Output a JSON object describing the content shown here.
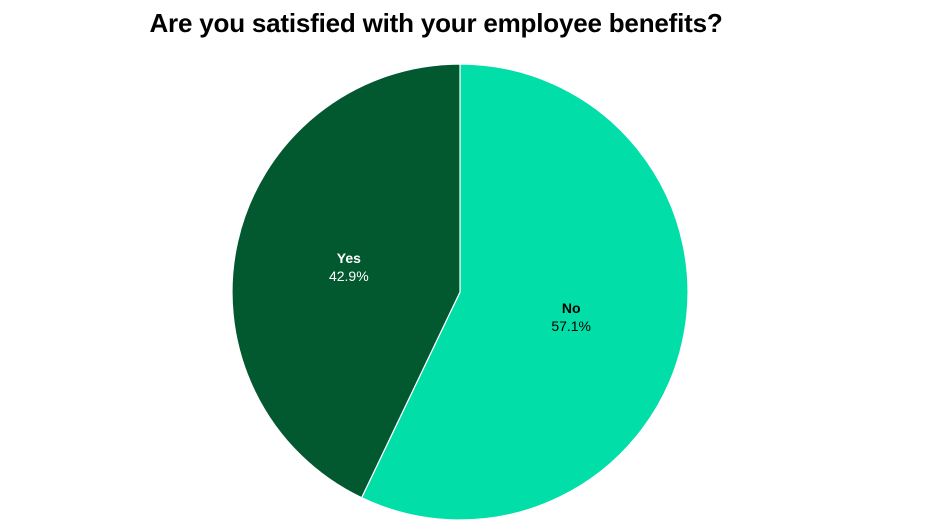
{
  "chart_data": {
    "type": "pie",
    "title": "Are you satisfied with your employee benefits?",
    "slices": [
      {
        "label": "No",
        "value": 57.1,
        "value_label": "57.1%",
        "color": "#02dea8",
        "text_color": "#000000"
      },
      {
        "label": "Yes",
        "value": 42.9,
        "value_label": "42.9%",
        "color": "#02582f",
        "text_color": "#ffffff"
      }
    ],
    "start": "12 o'clock",
    "direction": "clockwise"
  }
}
